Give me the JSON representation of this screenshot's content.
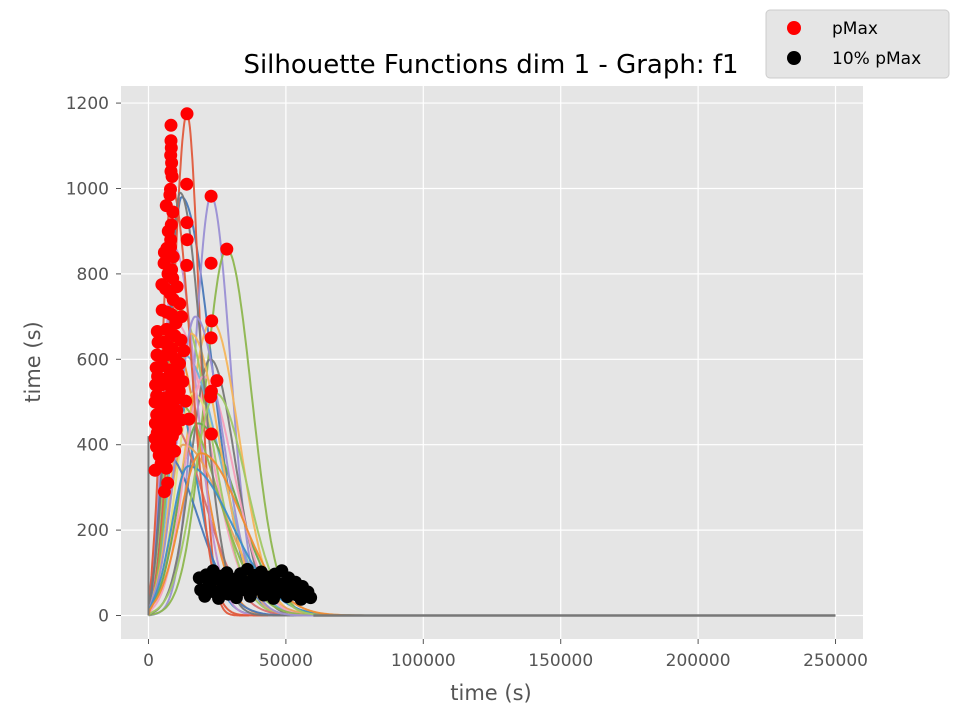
{
  "chart_data": {
    "type": "line",
    "title": "Silhouette Functions dim 1 - Graph:  f1",
    "xlabel": "time (s)",
    "ylabel": "time (s)",
    "xlim": [
      -10000,
      260000
    ],
    "ylim": [
      -55,
      1240
    ],
    "x_ticks": [
      0,
      50000,
      100000,
      150000,
      200000,
      250000
    ],
    "x_tick_labels": [
      "0",
      "50000",
      "100000",
      "150000",
      "200000",
      "250000"
    ],
    "y_ticks": [
      0,
      200,
      400,
      600,
      800,
      1000,
      1200
    ],
    "y_tick_labels": [
      "0",
      "200",
      "400",
      "600",
      "800",
      "1000",
      "1200"
    ],
    "grid": true,
    "legend_position": "top-right",
    "background": "#e5e5e5",
    "series": [
      {
        "name": "pMax",
        "marker": "circle",
        "color": "#ff0000",
        "points": [
          [
            14000,
            1175
          ],
          [
            8200,
            1148
          ],
          [
            8200,
            1112
          ],
          [
            8300,
            1095
          ],
          [
            8100,
            1078
          ],
          [
            8400,
            1060
          ],
          [
            8200,
            1040
          ],
          [
            8600,
            1028
          ],
          [
            13900,
            1010
          ],
          [
            8000,
            998
          ],
          [
            22800,
            982
          ],
          [
            7800,
            985
          ],
          [
            6500,
            960
          ],
          [
            8900,
            945
          ],
          [
            14000,
            920
          ],
          [
            8300,
            915
          ],
          [
            7200,
            900
          ],
          [
            8100,
            880
          ],
          [
            14100,
            880
          ],
          [
            8000,
            862
          ],
          [
            6700,
            860
          ],
          [
            28500,
            858
          ],
          [
            5800,
            850
          ],
          [
            9000,
            840
          ],
          [
            22800,
            825
          ],
          [
            5700,
            825
          ],
          [
            13900,
            820
          ],
          [
            8400,
            810
          ],
          [
            7100,
            800
          ],
          [
            8800,
            790
          ],
          [
            4900,
            775
          ],
          [
            10400,
            770
          ],
          [
            6200,
            765
          ],
          [
            7800,
            755
          ],
          [
            9000,
            740
          ],
          [
            11400,
            730
          ],
          [
            5000,
            715
          ],
          [
            6700,
            710
          ],
          [
            8400,
            705
          ],
          [
            12000,
            700
          ],
          [
            23000,
            690
          ],
          [
            10000,
            685
          ],
          [
            3200,
            665
          ],
          [
            6600,
            670
          ],
          [
            8100,
            660
          ],
          [
            9600,
            655
          ],
          [
            11800,
            645
          ],
          [
            22800,
            650
          ],
          [
            3500,
            640
          ],
          [
            5600,
            640
          ],
          [
            7300,
            630
          ],
          [
            8700,
            625
          ],
          [
            12900,
            620
          ],
          [
            3100,
            610
          ],
          [
            6400,
            610
          ],
          [
            9900,
            600
          ],
          [
            11300,
            590
          ],
          [
            2800,
            580
          ],
          [
            5000,
            585
          ],
          [
            7800,
            575
          ],
          [
            10800,
            565
          ],
          [
            3300,
            560
          ],
          [
            6500,
            555
          ],
          [
            9000,
            550
          ],
          [
            12500,
            548
          ],
          [
            24900,
            550
          ],
          [
            2600,
            540
          ],
          [
            4800,
            540
          ],
          [
            8500,
            530
          ],
          [
            11200,
            525
          ],
          [
            22900,
            525
          ],
          [
            3000,
            515
          ],
          [
            6100,
            510
          ],
          [
            9600,
            505
          ],
          [
            13500,
            502
          ],
          [
            22600,
            512
          ],
          [
            2400,
            500
          ],
          [
            4700,
            490
          ],
          [
            7500,
            485
          ],
          [
            10300,
            480
          ],
          [
            3000,
            470
          ],
          [
            5800,
            465
          ],
          [
            9100,
            460
          ],
          [
            11900,
            458
          ],
          [
            14700,
            460
          ],
          [
            2500,
            450
          ],
          [
            4400,
            445
          ],
          [
            7000,
            440
          ],
          [
            10100,
            435
          ],
          [
            3200,
            428
          ],
          [
            6300,
            425
          ],
          [
            8700,
            420
          ],
          [
            22900,
            425
          ],
          [
            2400,
            415
          ],
          [
            5100,
            410
          ],
          [
            7800,
            405
          ],
          [
            2900,
            395
          ],
          [
            6200,
            390
          ],
          [
            9500,
            385
          ],
          [
            3900,
            375
          ],
          [
            7200,
            370
          ],
          [
            4600,
            355
          ],
          [
            2400,
            340
          ],
          [
            6500,
            345
          ],
          [
            7000,
            310
          ],
          [
            5800,
            290
          ]
        ]
      },
      {
        "name": "10% pMax",
        "marker": "circle",
        "color": "#000000",
        "points": [
          [
            18500,
            88
          ],
          [
            21000,
            95
          ],
          [
            23500,
            105
          ],
          [
            26000,
            92
          ],
          [
            28500,
            100
          ],
          [
            31000,
            85
          ],
          [
            33500,
            98
          ],
          [
            36000,
            108
          ],
          [
            38500,
            94
          ],
          [
            41000,
            102
          ],
          [
            43500,
            90
          ],
          [
            46000,
            97
          ],
          [
            48500,
            105
          ],
          [
            51000,
            88
          ],
          [
            53500,
            78
          ],
          [
            56000,
            68
          ],
          [
            58000,
            55
          ],
          [
            19000,
            60
          ],
          [
            20500,
            45
          ],
          [
            22000,
            70
          ],
          [
            24000,
            55
          ],
          [
            25500,
            40
          ],
          [
            27000,
            65
          ],
          [
            29000,
            50
          ],
          [
            30500,
            72
          ],
          [
            32000,
            42
          ],
          [
            34000,
            60
          ],
          [
            35500,
            78
          ],
          [
            37000,
            45
          ],
          [
            39000,
            62
          ],
          [
            40500,
            80
          ],
          [
            42000,
            48
          ],
          [
            44000,
            66
          ],
          [
            45500,
            40
          ],
          [
            47000,
            58
          ],
          [
            49000,
            75
          ],
          [
            50500,
            44
          ],
          [
            52000,
            60
          ],
          [
            54000,
            48
          ],
          [
            55500,
            38
          ],
          [
            57000,
            45
          ],
          [
            59000,
            42
          ],
          [
            26500,
            82
          ],
          [
            31500,
            78
          ],
          [
            36500,
            72
          ],
          [
            41500,
            70
          ],
          [
            46500,
            78
          ],
          [
            51500,
            70
          ],
          [
            23000,
            80
          ],
          [
            33000,
            62
          ],
          [
            43000,
            56
          ],
          [
            48000,
            55
          ],
          [
            38000,
            58
          ],
          [
            28000,
            78
          ],
          [
            53000,
            58
          ],
          [
            21500,
            58
          ]
        ]
      }
    ],
    "curves": [
      {
        "color": "#4878b8",
        "peak_x": 12000,
        "peak_y": 980,
        "sigma_left": 4500,
        "sigma_right": 11000
      },
      {
        "color": "#e05a3c",
        "peak_x": 14000,
        "peak_y": 1175,
        "sigma_left": 5000,
        "sigma_right": 4500
      },
      {
        "color": "#9a8fd4",
        "peak_x": 22800,
        "peak_y": 982,
        "sigma_left": 6000,
        "sigma_right": 7000
      },
      {
        "color": "#8db64e",
        "peak_x": 28500,
        "peak_y": 858,
        "sigma_left": 8000,
        "sigma_right": 9000
      },
      {
        "color": "#f5b55a",
        "peak_x": 23000,
        "peak_y": 690,
        "sigma_left": 9000,
        "sigma_right": 10000
      },
      {
        "color": "#f59fba",
        "peak_x": 10000,
        "peak_y": 685,
        "sigma_left": 4000,
        "sigma_right": 12000
      },
      {
        "color": "#777777",
        "peak_x": 22500,
        "peak_y": 600,
        "sigma_left": 7000,
        "sigma_right": 9000
      },
      {
        "color": "#3c8fc9",
        "peak_x": 8000,
        "peak_y": 560,
        "sigma_left": 3500,
        "sigma_right": 9000
      },
      {
        "color": "#f08c2f",
        "peak_x": 9000,
        "peak_y": 640,
        "sigma_left": 3800,
        "sigma_right": 10000
      },
      {
        "color": "#a0c864",
        "peak_x": 11000,
        "peak_y": 720,
        "sigma_left": 4500,
        "sigma_right": 11500
      },
      {
        "color": "#e5e07a",
        "peak_x": 16000,
        "peak_y": 520,
        "sigma_left": 6000,
        "sigma_right": 12000
      },
      {
        "color": "#d97070",
        "peak_x": 7000,
        "peak_y": 460,
        "sigma_left": 3000,
        "sigma_right": 13000
      },
      {
        "color": "#6fb0d8",
        "peak_x": 13000,
        "peak_y": 610,
        "sigma_left": 5000,
        "sigma_right": 13000
      },
      {
        "color": "#c190d0",
        "peak_x": 9500,
        "peak_y": 860,
        "sigma_left": 4000,
        "sigma_right": 8000
      },
      {
        "color": "#6aa84f",
        "peak_x": 18000,
        "peak_y": 450,
        "sigma_left": 7000,
        "sigma_right": 14000
      },
      {
        "color": "#e8a35a",
        "peak_x": 12500,
        "peak_y": 400,
        "sigma_left": 5000,
        "sigma_right": 15000
      },
      {
        "color": "#4878b8",
        "peak_x": 6000,
        "peak_y": 380,
        "sigma_left": 2500,
        "sigma_right": 12000
      },
      {
        "color": "#f59fba",
        "peak_x": 20000,
        "peak_y": 560,
        "sigma_left": 7000,
        "sigma_right": 11000
      },
      {
        "color": "#8db64e",
        "peak_x": 10500,
        "peak_y": 500,
        "sigma_left": 4000,
        "sigma_right": 14000
      },
      {
        "color": "#f5b55a",
        "peak_x": 15500,
        "peak_y": 660,
        "sigma_left": 6000,
        "sigma_right": 10500
      },
      {
        "color": "#e05a3c",
        "peak_x": 8500,
        "peak_y": 1000,
        "sigma_left": 3500,
        "sigma_right": 7000
      },
      {
        "color": "#777777",
        "peak_x": 11500,
        "peak_y": 990,
        "sigma_left": 4500,
        "sigma_right": 8000
      },
      {
        "color": "#9a8fd4",
        "peak_x": 17000,
        "peak_y": 700,
        "sigma_left": 6500,
        "sigma_right": 10000
      },
      {
        "color": "#3c8fc9",
        "peak_x": 14500,
        "peak_y": 350,
        "sigma_left": 6000,
        "sigma_right": 16000
      },
      {
        "color": "#a0c864",
        "peak_x": 24500,
        "peak_y": 520,
        "sigma_left": 8000,
        "sigma_right": 11000
      },
      {
        "color": "#f08c2f",
        "peak_x": 19000,
        "peak_y": 380,
        "sigma_left": 7500,
        "sigma_right": 15000
      }
    ],
    "flat_line": {
      "color": "#777777",
      "x_start": 60000,
      "x_end": 250000,
      "y": 0
    }
  }
}
